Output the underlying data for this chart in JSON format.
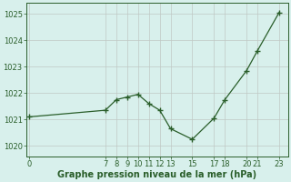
{
  "x": [
    0,
    7,
    8,
    9,
    10,
    11,
    12,
    13,
    15,
    17,
    18,
    20,
    21,
    23
  ],
  "y": [
    1021.1,
    1021.35,
    1021.75,
    1021.85,
    1021.95,
    1021.6,
    1021.35,
    1020.65,
    1020.25,
    1021.05,
    1021.75,
    1022.85,
    1023.6,
    1025.05
  ],
  "line_color": "#2a5e2a",
  "marker_color": "#2a5e2a",
  "bg_color": "#d8f0ec",
  "grid_color": "#c0c8c4",
  "xlabel": "Graphe pression niveau de la mer (hPa)",
  "xticks": [
    0,
    7,
    8,
    9,
    10,
    11,
    12,
    13,
    15,
    17,
    18,
    20,
    21,
    23
  ],
  "yticks": [
    1020,
    1021,
    1022,
    1023,
    1024,
    1025
  ],
  "ylim": [
    1019.6,
    1025.4
  ],
  "xlim": [
    -0.3,
    23.8
  ],
  "tick_fontsize": 6,
  "xlabel_fontsize": 7,
  "tick_color": "#2a5e2a",
  "label_color": "#2a5e2a"
}
